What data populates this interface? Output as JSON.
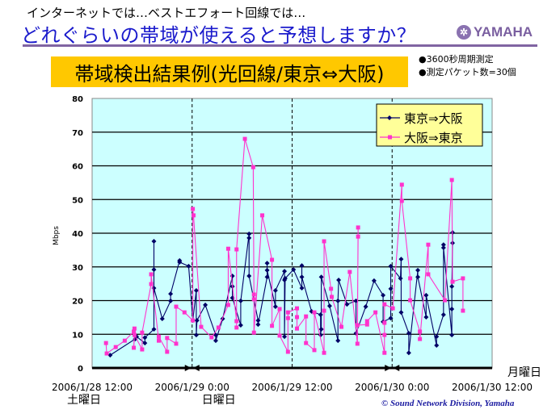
{
  "header": {
    "subtitle": "インターネットでは…ベストエフォート回線では…",
    "title": "どれぐらいの帯域が使えると予想しますか？",
    "logo_text": "YAMAHA"
  },
  "banner": "帯域検出結果例(光回線/東京⇔大阪)",
  "notes": [
    "●3600秒周期測定",
    "●測定パケット数=30個"
  ],
  "copyright": "© Sound Network Division, Yamaha",
  "colors": {
    "accent_purple": "#8064a2",
    "title_blue": "#1a1acc",
    "banner": "#ffc800",
    "plot_bg": "#ccffff",
    "legend_bg": "#ffff99",
    "series_tokyo_osaka": "#000066",
    "series_osaka_tokyo": "#ff33cc"
  },
  "chart_data": {
    "type": "line",
    "ylabel": "Mbps",
    "ylim": [
      0,
      80
    ],
    "yticks": [
      0,
      10,
      20,
      30,
      40,
      50,
      60,
      70,
      80
    ],
    "xlim": [
      "2006/1/28 12:00",
      "2006/1/30 12:00"
    ],
    "xticks": [
      "2006/1/28 12:00",
      "2006/1/29 0:00",
      "2006/1/29 12:00",
      "2006/1/30 0:00",
      "2006/1/30 12:00"
    ],
    "day_labels": [
      {
        "at": "2006/1/28 12:00",
        "label": "土曜日"
      },
      {
        "at": "2006/1/29 0:00",
        "label": "日曜日"
      },
      {
        "at": "2006/1/30 12:00",
        "label": "月曜日"
      }
    ],
    "grid": "horizontal",
    "legend_position": "top-right",
    "series": [
      {
        "name": "東京⇒大阪",
        "marker": "diamond",
        "color": "#000066",
        "points": [
          [
            "2006/1/28 14:10",
            3.8
          ],
          [
            "2006/1/28 17:10",
            8.6
          ],
          [
            "2006/1/28 17:20",
            9.3
          ],
          [
            "2006/1/28 18:20",
            7.4
          ],
          [
            "2006/1/28 18:20",
            9.0
          ],
          [
            "2006/1/28 19:25",
            11.5
          ],
          [
            "2006/1/28 19:25",
            37.6
          ],
          [
            "2006/1/28 19:25",
            29.2
          ],
          [
            "2006/1/28 19:25",
            23.7
          ],
          [
            "2006/1/28 20:25",
            14.6
          ],
          [
            "2006/1/28 21:25",
            19.9
          ],
          [
            "2006/1/28 21:25",
            22.0
          ],
          [
            "2006/1/28 22:30",
            31.9
          ],
          [
            "2006/1/28 22:30",
            31.4
          ],
          [
            "2006/1/28 23:35",
            30.2
          ],
          [
            "2006/1/29 0:05",
            14.1
          ],
          [
            "2006/1/29 0:30",
            23.0
          ],
          [
            "2006/1/29 0:30",
            9.8
          ],
          [
            "2006/1/29 0:35",
            14.1
          ],
          [
            "2006/1/29 1:35",
            18.7
          ],
          [
            "2006/1/29 2:50",
            9.8
          ],
          [
            "2006/1/29 2:50",
            8.1
          ],
          [
            "2006/1/29 3:40",
            14.6
          ],
          [
            "2006/1/29 4:50",
            27.3
          ],
          [
            "2006/1/29 4:50",
            24.2
          ],
          [
            "2006/1/29 4:50",
            20.8
          ],
          [
            "2006/1/29 5:50",
            12.7
          ],
          [
            "2006/1/29 5:50",
            19.9
          ],
          [
            "2006/1/29 6:50",
            39.8
          ],
          [
            "2006/1/29 6:50",
            38.6
          ],
          [
            "2006/1/29 6:50",
            27.3
          ],
          [
            "2006/1/29 7:55",
            14.1
          ],
          [
            "2006/1/29 7:55",
            12.9
          ],
          [
            "2006/1/29 9:00",
            27.0
          ],
          [
            "2006/1/29 9:00",
            31.1
          ],
          [
            "2006/1/29 9:00",
            29.0
          ],
          [
            "2006/1/29 10:00",
            18.2
          ],
          [
            "2006/1/29 10:00",
            23.0
          ],
          [
            "2006/1/29 11:05",
            28.7
          ],
          [
            "2006/1/29 11:05",
            26.1
          ],
          [
            "2006/1/29 11:05",
            9.3
          ],
          [
            "2006/1/29 11:10",
            26.6
          ],
          [
            "2006/1/29 12:10",
            29.2
          ],
          [
            "2006/1/29 13:10",
            23.7
          ],
          [
            "2006/1/29 13:10",
            30.4
          ],
          [
            "2006/1/29 13:10",
            27.0
          ],
          [
            "2006/1/29 14:20",
            16.8
          ],
          [
            "2006/1/29 15:25",
            15.8
          ],
          [
            "2006/1/29 15:25",
            9.8
          ],
          [
            "2006/1/29 15:30",
            11.5
          ],
          [
            "2006/1/29 15:30",
            27.0
          ],
          [
            "2006/1/29 16:30",
            18.4
          ],
          [
            "2006/1/29 17:30",
            8.1
          ],
          [
            "2006/1/29 17:30",
            19.9
          ],
          [
            "2006/1/29 17:35",
            26.1
          ],
          [
            "2006/1/29 18:35",
            18.9
          ],
          [
            "2006/1/29 19:40",
            19.9
          ],
          [
            "2006/1/29 19:40",
            10.3
          ],
          [
            "2006/1/29 20:50",
            18.2
          ],
          [
            "2006/1/29 21:50",
            25.9
          ],
          [
            "2006/1/29 22:55",
            21.6
          ],
          [
            "2006/1/29 22:55",
            13.7
          ],
          [
            "2006/1/29 23:50",
            14.8
          ],
          [
            "2006/1/29 23:50",
            23.5
          ],
          [
            "2006/1/29 23:50",
            30.2
          ],
          [
            "2006/1/30 1:00",
            26.6
          ],
          [
            "2006/1/30 1:05",
            32.3
          ],
          [
            "2006/1/30 1:05",
            16.5
          ],
          [
            "2006/1/30 2:00",
            10.3
          ],
          [
            "2006/1/30 2:00",
            4.5
          ],
          [
            "2006/1/30 3:05",
            29.0
          ],
          [
            "2006/1/30 3:05",
            27.0
          ],
          [
            "2006/1/30 4:05",
            15.1
          ],
          [
            "2006/1/30 4:05",
            21.6
          ],
          [
            "2006/1/30 5:20",
            6.7
          ],
          [
            "2006/1/30 5:20",
            9.3
          ],
          [
            "2006/1/30 6:10",
            15.8
          ],
          [
            "2006/1/30 6:10",
            36.6
          ],
          [
            "2006/1/30 6:10",
            35.7
          ],
          [
            "2006/1/30 7:10",
            9.8
          ],
          [
            "2006/1/30 7:10",
            17.5
          ],
          [
            "2006/1/30 7:10",
            24.2
          ],
          [
            "2006/1/30 7:15",
            37.1
          ],
          [
            "2006/1/30 7:15",
            40.2
          ]
        ]
      },
      {
        "name": "大阪⇒東京",
        "marker": "square",
        "color": "#ff33cc",
        "points": [
          [
            "2006/1/28 13:40",
            7.4
          ],
          [
            "2006/1/28 13:45",
            4.3
          ],
          [
            "2006/1/28 14:50",
            6.2
          ],
          [
            "2006/1/28 15:55",
            8.1
          ],
          [
            "2006/1/28 17:00",
            10.8
          ],
          [
            "2006/1/28 17:05",
            11.7
          ],
          [
            "2006/1/28 17:00",
            6.0
          ],
          [
            "2006/1/28 17:05",
            9.8
          ],
          [
            "2006/1/28 18:00",
            5.5
          ],
          [
            "2006/1/28 18:00",
            10.5
          ],
          [
            "2006/1/28 19:05",
            24.9
          ],
          [
            "2006/1/28 19:05",
            27.8
          ],
          [
            "2006/1/28 20:00",
            8.1
          ],
          [
            "2006/1/28 20:00",
            9.3
          ],
          [
            "2006/1/28 21:00",
            4.8
          ],
          [
            "2006/1/28 21:00",
            8.9
          ],
          [
            "2006/1/28 22:05",
            7.2
          ],
          [
            "2006/1/28 22:05",
            18.2
          ],
          [
            "2006/1/28 23:05",
            16.5
          ],
          [
            "2006/1/29 0:05",
            14.1
          ],
          [
            "2006/1/29 0:05",
            47.2
          ],
          [
            "2006/1/29 0:10",
            45.3
          ],
          [
            "2006/1/29 1:05",
            12.2
          ],
          [
            "2006/1/29 2:20",
            9.1
          ],
          [
            "2006/1/29 3:10",
            12.0
          ],
          [
            "2006/1/29 4:20",
            18.7
          ],
          [
            "2006/1/29 4:20",
            35.4
          ],
          [
            "2006/1/29 5:20",
            13.9
          ],
          [
            "2006/1/29 5:20",
            12.0
          ],
          [
            "2006/1/29 5:20",
            35.2
          ],
          [
            "2006/1/29 6:20",
            68.0
          ],
          [
            "2006/1/29 7:20",
            59.6
          ],
          [
            "2006/1/29 7:25",
            21.8
          ],
          [
            "2006/1/29 7:25",
            20.4
          ],
          [
            "2006/1/29 7:25",
            10.5
          ],
          [
            "2006/1/29 8:25",
            45.3
          ],
          [
            "2006/1/29 9:35",
            32.1
          ],
          [
            "2006/1/29 9:35",
            12.5
          ],
          [
            "2006/1/29 10:30",
            17.5
          ],
          [
            "2006/1/29 10:30",
            9.6
          ],
          [
            "2006/1/29 11:30",
            4.8
          ],
          [
            "2006/1/29 11:30",
            14.8
          ],
          [
            "2006/1/29 11:30",
            16.5
          ],
          [
            "2006/1/29 12:35",
            17.7
          ],
          [
            "2006/1/29 12:35",
            15.1
          ],
          [
            "2006/1/29 12:35",
            11.7
          ],
          [
            "2006/1/29 13:40",
            15.3
          ],
          [
            "2006/1/29 13:40",
            7.4
          ],
          [
            "2006/1/29 14:40",
            5.3
          ],
          [
            "2006/1/29 14:40",
            16.5
          ],
          [
            "2006/1/29 15:50",
            4.5
          ],
          [
            "2006/1/29 15:50",
            17.0
          ],
          [
            "2006/1/29 15:50",
            37.6
          ],
          [
            "2006/1/29 16:40",
            23.5
          ],
          [
            "2006/1/29 16:45",
            21.1
          ],
          [
            "2006/1/29 17:55",
            12.2
          ],
          [
            "2006/1/29 18:55",
            28.5
          ],
          [
            "2006/1/29 19:50",
            7.2
          ],
          [
            "2006/1/29 19:55",
            41.7
          ],
          [
            "2006/1/29 19:55",
            39.0
          ],
          [
            "2006/1/29 19:50",
            12.7
          ],
          [
            "2006/1/29 21:00",
            12.9
          ],
          [
            "2006/1/29 21:00",
            13.9
          ],
          [
            "2006/1/29 22:00",
            16.5
          ],
          [
            "2006/1/29 23:05",
            4.5
          ],
          [
            "2006/1/29 23:05",
            9.8
          ],
          [
            "2006/1/29 23:05",
            13.4
          ],
          [
            "2006/1/29 23:05",
            18.9
          ],
          [
            "2006/1/30 0:05",
            17.7
          ],
          [
            "2006/1/30 1:10",
            54.4
          ],
          [
            "2006/1/30 1:10",
            49.6
          ],
          [
            "2006/1/30 2:10",
            26.6
          ],
          [
            "2006/1/30 2:10",
            20.1
          ],
          [
            "2006/1/30 3:20",
            10.8
          ],
          [
            "2006/1/30 3:20",
            8.6
          ],
          [
            "2006/1/30 4:20",
            36.6
          ],
          [
            "2006/1/30 4:20",
            27.8
          ],
          [
            "2006/1/30 6:20",
            20.1
          ],
          [
            "2006/1/30 7:10",
            55.8
          ],
          [
            "2006/1/30 7:15",
            25.6
          ],
          [
            "2006/1/30 8:30",
            26.6
          ],
          [
            "2006/1/30 8:30",
            17.0
          ]
        ]
      }
    ]
  }
}
